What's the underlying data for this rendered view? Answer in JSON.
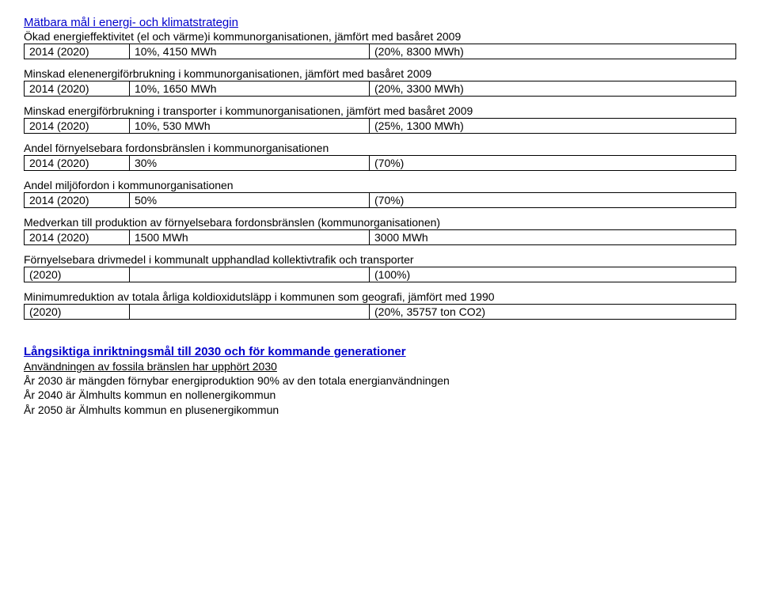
{
  "title": "Mätbara mål i energi- och klimatstrategin",
  "sections": [
    {
      "heading": "Ökad energieffektivitet (el och värme)i kommunorganisationen, jämfört med basåret 2009",
      "row": [
        "2014 (2020)",
        "10%, 4150 MWh",
        "(20%, 8300 MWh)"
      ]
    },
    {
      "heading": "Minskad elenenergiförbrukning i kommunorganisationen, jämfört med basåret 2009",
      "row": [
        "2014 (2020)",
        "10%, 1650 MWh",
        "(20%, 3300 MWh)"
      ]
    },
    {
      "heading": "Minskad energiförbrukning i transporter i kommunorganisationen, jämfört med basåret 2009",
      "row": [
        "2014 (2020)",
        "10%, 530 MWh",
        "(25%, 1300 MWh)"
      ]
    },
    {
      "heading": "Andel förnyelsebara fordonsbränslen i kommunorganisationen",
      "row": [
        "2014 (2020)",
        "30%",
        "(70%)"
      ]
    },
    {
      "heading": "Andel miljöfordon i kommunorganisationen",
      "row": [
        "2014 (2020)",
        "50%",
        "(70%)"
      ]
    },
    {
      "heading": "Medverkan till produktion av förnyelsebara fordonsbränslen (kommunorganisationen)",
      "row": [
        "2014 (2020)",
        "1500 MWh",
        "3000 MWh"
      ]
    },
    {
      "heading": "Förnyelsebara drivmedel i kommunalt upphandlad kollektivtrafik och transporter",
      "row": [
        "(2020)",
        "",
        "(100%)"
      ]
    },
    {
      "heading": "Minimumreduktion av totala årliga koldioxidutsläpp i kommunen som geografi, jämfört med 1990",
      "row": [
        "(2020)",
        "",
        "(20%, 35757 ton CO2)"
      ]
    }
  ],
  "longterm": {
    "title": "Långsiktiga inriktningsmål till 2030 och för kommande generationer",
    "lines": [
      "Användningen av fossila bränslen har upphört 2030",
      "År 2030 är mängden förnybar energiproduktion 90% av den totala energianvändningen",
      "År 2040 är Älmhults kommun en nollenergikommun",
      "År 2050 är Älmhults kommun en plusenergikommun"
    ]
  }
}
